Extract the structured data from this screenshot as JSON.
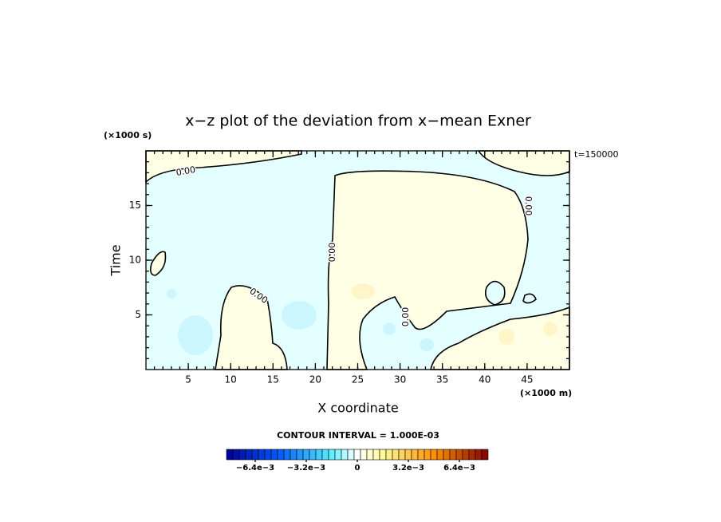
{
  "chart_data": {
    "type": "contour",
    "title": "x−z plot of the deviation from x−mean Exner",
    "x_label": "X coordinate",
    "y_label": "Time",
    "x_unit": "(×1000 m)",
    "y_unit": "(×1000 s)",
    "annotation": "t=150000",
    "xlim": [
      0,
      50
    ],
    "ylim": [
      0,
      20
    ],
    "xticks": [
      5,
      10,
      15,
      20,
      25,
      30,
      35,
      40,
      45
    ],
    "yticks": [
      5,
      10,
      15
    ],
    "contour_labels": [
      "0.00",
      "0.00",
      "0.00",
      "0.00",
      "0.00"
    ],
    "colorbar": {
      "title": "CONTOUR INTERVAL = 1.000E-03",
      "clim": [
        -0.0082,
        0.0082
      ],
      "ticks": [
        {
          "value": -0.0064,
          "label": "−6.4e−3"
        },
        {
          "value": -0.0032,
          "label": "−3.2e−3"
        },
        0,
        {
          "value": 0.0032,
          "label": "3.2e−3"
        },
        {
          "value": 0.0064,
          "label": "6.4e−3"
        }
      ]
    }
  }
}
